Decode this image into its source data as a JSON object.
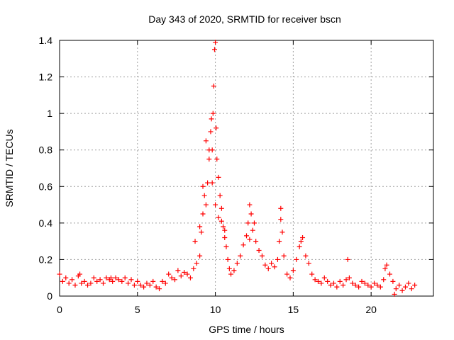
{
  "chart_data": {
    "type": "scatter",
    "title": "Day 343 of 2020, SRMTID for receiver bscn",
    "xlabel": "GPS time / hours",
    "ylabel": "SRMTID / TECUs",
    "xlim": [
      0,
      24
    ],
    "ylim": [
      0,
      1.4
    ],
    "grid": true,
    "marker": "+",
    "colors": {
      "series": "#ff0000",
      "grid": "#a0a0a0",
      "axes": "#000000"
    },
    "x_ticks": [
      {
        "value": 0,
        "label": "0"
      },
      {
        "value": 5,
        "label": "5"
      },
      {
        "value": 10,
        "label": "10"
      },
      {
        "value": 15,
        "label": "15"
      },
      {
        "value": 20,
        "label": "20"
      }
    ],
    "y_ticks": [
      {
        "value": 0,
        "label": "0"
      },
      {
        "value": 0.2,
        "label": "0.2"
      },
      {
        "value": 0.4,
        "label": "0.4"
      },
      {
        "value": 0.6,
        "label": "0.6"
      },
      {
        "value": 0.8,
        "label": "0.8"
      },
      {
        "value": 1.0,
        "label": "1"
      },
      {
        "value": 1.2,
        "label": "1.2"
      },
      {
        "value": 1.4,
        "label": "1.4"
      }
    ],
    "series": [
      {
        "name": "SRMTID",
        "x": [
          0.0,
          0.2,
          0.4,
          0.6,
          0.8,
          1.0,
          1.2,
          1.4,
          1.6,
          1.8,
          2.0,
          2.2,
          2.4,
          2.6,
          2.8,
          3.0,
          3.2,
          3.4,
          3.6,
          3.8,
          4.0,
          4.2,
          4.4,
          4.6,
          4.8,
          5.0,
          5.2,
          5.4,
          5.6,
          5.8,
          6.0,
          6.2,
          6.4,
          6.6,
          6.8,
          7.0,
          7.2,
          7.4,
          7.6,
          7.8,
          8.0,
          8.2,
          8.4,
          8.6,
          8.8,
          9.0,
          9.1,
          9.2,
          9.3,
          9.4,
          9.5,
          9.6,
          9.7,
          9.75,
          9.8,
          9.85,
          9.9,
          9.95,
          10.0,
          10.05,
          10.1,
          10.2,
          10.3,
          10.4,
          10.5,
          10.6,
          10.7,
          10.8,
          10.9,
          11.0,
          11.2,
          11.4,
          11.6,
          11.8,
          12.0,
          12.1,
          12.2,
          12.3,
          12.4,
          12.6,
          12.8,
          13.0,
          13.2,
          13.4,
          13.6,
          13.8,
          14.0,
          14.1,
          14.2,
          14.3,
          14.4,
          14.6,
          14.8,
          15.0,
          15.2,
          15.4,
          15.6,
          15.8,
          16.0,
          16.2,
          16.4,
          16.6,
          16.8,
          17.0,
          17.2,
          17.4,
          17.6,
          17.8,
          18.0,
          18.2,
          18.4,
          18.5,
          18.6,
          18.8,
          19.0,
          19.2,
          19.4,
          19.6,
          19.8,
          20.0,
          20.2,
          20.4,
          20.6,
          20.8,
          20.9,
          21.0,
          21.2,
          21.4,
          21.5,
          21.6,
          21.8,
          22.0,
          22.2,
          22.4,
          22.6,
          22.8,
          8.7,
          9.0,
          9.2,
          9.4,
          9.6,
          9.8,
          10.0,
          10.2,
          10.4,
          10.6,
          12.2,
          12.5,
          14.2,
          15.5,
          3.3,
          1.3
        ],
        "y": [
          0.12,
          0.08,
          0.1,
          0.07,
          0.09,
          0.06,
          0.11,
          0.07,
          0.08,
          0.06,
          0.07,
          0.1,
          0.08,
          0.09,
          0.07,
          0.1,
          0.09,
          0.08,
          0.1,
          0.09,
          0.08,
          0.1,
          0.07,
          0.09,
          0.06,
          0.08,
          0.06,
          0.05,
          0.07,
          0.06,
          0.08,
          0.05,
          0.04,
          0.08,
          0.07,
          0.12,
          0.1,
          0.09,
          0.14,
          0.11,
          0.13,
          0.12,
          0.1,
          0.15,
          0.18,
          0.22,
          0.35,
          0.45,
          0.55,
          0.5,
          0.62,
          0.75,
          0.9,
          0.97,
          0.8,
          1.0,
          1.15,
          1.35,
          1.39,
          0.92,
          0.75,
          0.65,
          0.55,
          0.48,
          0.38,
          0.32,
          0.27,
          0.2,
          0.15,
          0.12,
          0.14,
          0.18,
          0.22,
          0.28,
          0.33,
          0.4,
          0.5,
          0.45,
          0.36,
          0.3,
          0.25,
          0.22,
          0.17,
          0.15,
          0.18,
          0.16,
          0.2,
          0.3,
          0.48,
          0.35,
          0.22,
          0.12,
          0.1,
          0.14,
          0.2,
          0.27,
          0.32,
          0.22,
          0.18,
          0.12,
          0.09,
          0.08,
          0.07,
          0.1,
          0.08,
          0.06,
          0.07,
          0.05,
          0.08,
          0.06,
          0.09,
          0.2,
          0.1,
          0.07,
          0.06,
          0.05,
          0.08,
          0.07,
          0.06,
          0.05,
          0.07,
          0.06,
          0.05,
          0.09,
          0.15,
          0.17,
          0.12,
          0.08,
          0.01,
          0.04,
          0.06,
          0.03,
          0.05,
          0.07,
          0.04,
          0.06,
          0.3,
          0.38,
          0.6,
          0.85,
          0.8,
          0.62,
          0.5,
          0.43,
          0.41,
          0.36,
          0.31,
          0.4,
          0.42,
          0.3,
          0.1,
          0.12
        ]
      }
    ]
  }
}
